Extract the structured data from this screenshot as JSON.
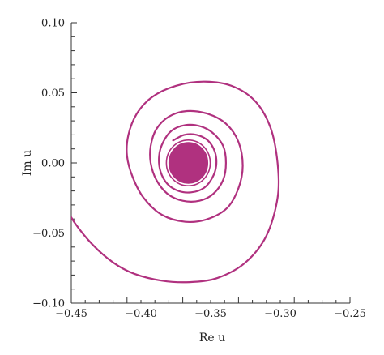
{
  "chart_data": {
    "type": "line",
    "title": "",
    "xlabel": "Re u",
    "ylabel": "Im u",
    "xlim": [
      -0.45,
      -0.25
    ],
    "ylim": [
      -0.1,
      0.1
    ],
    "x_major_ticks": [
      -0.45,
      -0.4,
      -0.35,
      -0.3,
      -0.25
    ],
    "x_tick_labels": [
      "−0.45",
      "−0.40",
      "−0.35",
      "−0.30",
      "−0.25"
    ],
    "y_major_ticks": [
      0.1,
      0.05,
      0.0,
      -0.05,
      -0.1
    ],
    "y_tick_labels": [
      "0.10",
      "0.05",
      "0.00",
      "−0.05",
      "−0.10"
    ],
    "grid": false,
    "legend": "none",
    "colors": {
      "curve": "#b0317f",
      "core": "#b0317f",
      "axis": "#333333"
    },
    "series": [
      {
        "points": [
          [
            -0.455,
            -0.029
          ],
          [
            -0.448,
            -0.042
          ],
          [
            -0.435,
            -0.058
          ],
          [
            -0.42,
            -0.071
          ],
          [
            -0.405,
            -0.079
          ],
          [
            -0.385,
            -0.084
          ],
          [
            -0.365,
            -0.085
          ],
          [
            -0.345,
            -0.082
          ],
          [
            -0.325,
            -0.071
          ],
          [
            -0.31,
            -0.052
          ],
          [
            -0.302,
            -0.025
          ],
          [
            -0.302,
            0.0
          ],
          [
            -0.307,
            0.025
          ],
          [
            -0.318,
            0.044
          ],
          [
            -0.335,
            0.055
          ],
          [
            -0.355,
            0.058
          ],
          [
            -0.375,
            0.055
          ],
          [
            -0.392,
            0.047
          ],
          [
            -0.403,
            0.035
          ],
          [
            -0.409,
            0.02
          ],
          [
            -0.41,
            0.005
          ],
          [
            -0.406,
            -0.01
          ],
          [
            -0.398,
            -0.025
          ],
          [
            -0.385,
            -0.037
          ],
          [
            -0.368,
            -0.042
          ],
          [
            -0.352,
            -0.04
          ],
          [
            -0.338,
            -0.032
          ],
          [
            -0.33,
            -0.018
          ],
          [
            -0.327,
            -0.002
          ],
          [
            -0.33,
            0.015
          ],
          [
            -0.339,
            0.028
          ],
          [
            -0.352,
            0.035
          ],
          [
            -0.367,
            0.037
          ],
          [
            -0.38,
            0.033
          ],
          [
            -0.389,
            0.024
          ],
          [
            -0.393,
            0.012
          ],
          [
            -0.393,
            0.0
          ],
          [
            -0.389,
            -0.012
          ],
          [
            -0.381,
            -0.022
          ],
          [
            -0.37,
            -0.027
          ],
          [
            -0.358,
            -0.027
          ],
          [
            -0.348,
            -0.022
          ],
          [
            -0.341,
            -0.012
          ],
          [
            -0.339,
            0.0
          ],
          [
            -0.341,
            0.012
          ],
          [
            -0.348,
            0.021
          ],
          [
            -0.357,
            0.026
          ],
          [
            -0.368,
            0.027
          ],
          [
            -0.378,
            0.023
          ],
          [
            -0.384,
            0.015
          ],
          [
            -0.387,
            0.005
          ],
          [
            -0.386,
            -0.006
          ],
          [
            -0.381,
            -0.015
          ],
          [
            -0.373,
            -0.02
          ],
          [
            -0.364,
            -0.021
          ],
          [
            -0.355,
            -0.018
          ],
          [
            -0.349,
            -0.011
          ],
          [
            -0.346,
            -0.002
          ],
          [
            -0.347,
            0.008
          ],
          [
            -0.352,
            0.016
          ],
          [
            -0.36,
            0.02
          ],
          [
            -0.369,
            0.02
          ],
          [
            -0.377,
            0.016
          ]
        ]
      }
    ],
    "core_region": {
      "center": [
        -0.366,
        0.0
      ],
      "radii": [
        0.014,
        0.014
      ]
    }
  }
}
